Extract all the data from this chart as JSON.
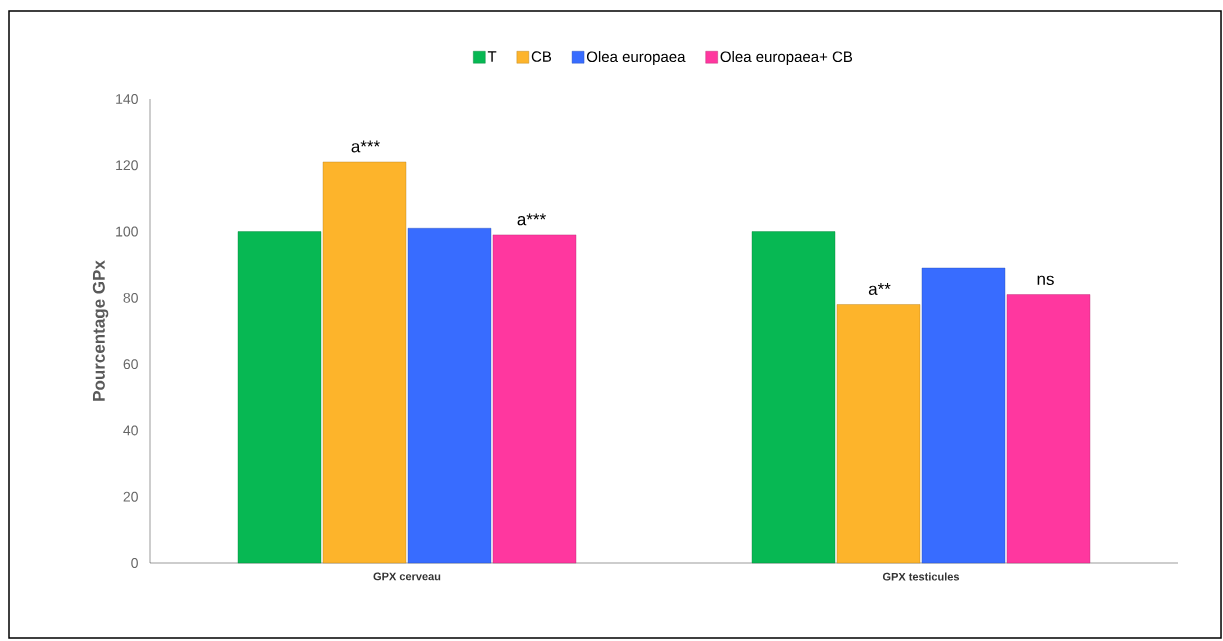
{
  "chart_data": {
    "type": "bar",
    "ylabel": "Pourcentage GPx",
    "categories": [
      "GPX cerveau",
      "GPX testicules"
    ],
    "series": [
      {
        "name": "T",
        "color": "#07b853",
        "values": [
          100,
          100
        ]
      },
      {
        "name": "CB",
        "color": "#fdb42b",
        "values": [
          121,
          78
        ]
      },
      {
        "name": "Olea europaea",
        "color": "#386cff",
        "values": [
          101,
          89
        ]
      },
      {
        "name": "Olea europaea+ CB",
        "color": "#ff379f",
        "values": [
          99,
          81
        ]
      }
    ],
    "ylim": [
      0,
      140
    ],
    "yticks": [
      0,
      20,
      40,
      60,
      80,
      100,
      120,
      140
    ],
    "legend": "top",
    "grid": false,
    "annotations": [
      "a***",
      "a***",
      "a**",
      "ns"
    ]
  }
}
